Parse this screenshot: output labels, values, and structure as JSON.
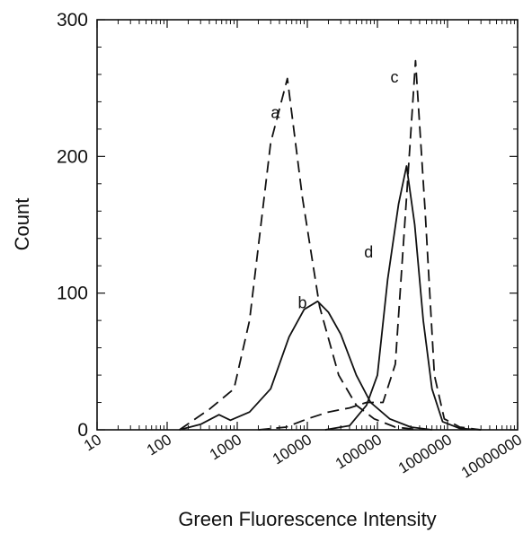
{
  "chart_data": {
    "type": "line",
    "xscale": "log",
    "xlim": [
      10,
      10000000
    ],
    "ylim": [
      0,
      300
    ],
    "xlabel": "Green Fluorescence Intensity",
    "ylabel": "Count",
    "xticks": [
      "10",
      "100",
      "1000",
      "10000",
      "100000",
      "1000000",
      "10000000"
    ],
    "yticks": [
      "0",
      "100",
      "200",
      "300"
    ],
    "grid": false,
    "series": [
      {
        "name": "a",
        "style": "dashed",
        "points": [
          [
            150,
            0
          ],
          [
            400,
            15
          ],
          [
            900,
            30
          ],
          [
            1500,
            80
          ],
          [
            3000,
            210
          ],
          [
            5200,
            257
          ],
          [
            8500,
            170
          ],
          [
            15000,
            90
          ],
          [
            28000,
            40
          ],
          [
            50000,
            18
          ],
          [
            90000,
            8
          ],
          [
            180000,
            2
          ],
          [
            400000,
            0
          ]
        ]
      },
      {
        "name": "b",
        "style": "solid",
        "points": [
          [
            150,
            0
          ],
          [
            300,
            4
          ],
          [
            550,
            11
          ],
          [
            800,
            7
          ],
          [
            1500,
            13
          ],
          [
            3000,
            30
          ],
          [
            5500,
            68
          ],
          [
            9000,
            88
          ],
          [
            14000,
            94
          ],
          [
            20000,
            86
          ],
          [
            30000,
            70
          ],
          [
            50000,
            40
          ],
          [
            80000,
            20
          ],
          [
            150000,
            8
          ],
          [
            300000,
            2
          ],
          [
            600000,
            0
          ]
        ]
      },
      {
        "name": "c",
        "style": "dashed",
        "points": [
          [
            2000,
            0
          ],
          [
            5000,
            2
          ],
          [
            10000,
            8
          ],
          [
            20000,
            13
          ],
          [
            40000,
            16
          ],
          [
            70000,
            20
          ],
          [
            120000,
            20
          ],
          [
            180000,
            48
          ],
          [
            260000,
            170
          ],
          [
            350000,
            270
          ],
          [
            480000,
            160
          ],
          [
            650000,
            40
          ],
          [
            900000,
            8
          ],
          [
            1500000,
            2
          ],
          [
            3000000,
            0
          ]
        ]
      },
      {
        "name": "d",
        "style": "solid",
        "points": [
          [
            18000,
            0
          ],
          [
            40000,
            3
          ],
          [
            70000,
            18
          ],
          [
            100000,
            40
          ],
          [
            140000,
            110
          ],
          [
            200000,
            165
          ],
          [
            260000,
            193
          ],
          [
            340000,
            150
          ],
          [
            450000,
            80
          ],
          [
            600000,
            30
          ],
          [
            850000,
            6
          ],
          [
            1500000,
            1
          ],
          [
            3000000,
            0
          ]
        ]
      }
    ],
    "annotations": [
      {
        "text": "a",
        "x": 3500,
        "y": 232
      },
      {
        "text": "b",
        "x": 8500,
        "y": 93
      },
      {
        "text": "c",
        "x": 175000,
        "y": 258
      },
      {
        "text": "d",
        "x": 75000,
        "y": 130
      }
    ]
  }
}
